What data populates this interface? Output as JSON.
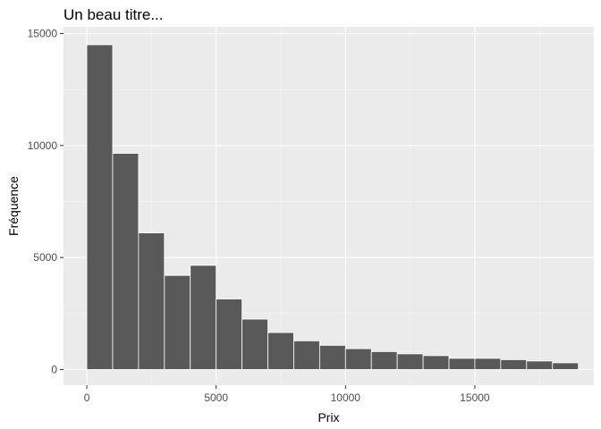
{
  "chart_data": {
    "type": "bar",
    "title": "Un beau titre...",
    "xlabel": "Prix",
    "ylabel": "Fréquence",
    "xlim": [
      -900,
      19600
    ],
    "ylim": [
      -700,
      15300
    ],
    "x_ticks": [
      0,
      5000,
      10000,
      15000
    ],
    "y_ticks": [
      0,
      5000,
      10000,
      15000
    ],
    "bin_width": 1000,
    "bins": [
      {
        "start": 0,
        "end": 1000,
        "value": 14500
      },
      {
        "start": 1000,
        "end": 2000,
        "value": 9650
      },
      {
        "start": 2000,
        "end": 3000,
        "value": 6100
      },
      {
        "start": 3000,
        "end": 4000,
        "value": 4200
      },
      {
        "start": 4000,
        "end": 5000,
        "value": 4650
      },
      {
        "start": 5000,
        "end": 6000,
        "value": 3150
      },
      {
        "start": 6000,
        "end": 7000,
        "value": 2250
      },
      {
        "start": 7000,
        "end": 8000,
        "value": 1650
      },
      {
        "start": 8000,
        "end": 9000,
        "value": 1280
      },
      {
        "start": 9000,
        "end": 10000,
        "value": 1080
      },
      {
        "start": 10000,
        "end": 11000,
        "value": 930
      },
      {
        "start": 11000,
        "end": 12000,
        "value": 800
      },
      {
        "start": 12000,
        "end": 13000,
        "value": 700
      },
      {
        "start": 13000,
        "end": 14000,
        "value": 620
      },
      {
        "start": 14000,
        "end": 15000,
        "value": 500
      },
      {
        "start": 15000,
        "end": 16000,
        "value": 500
      },
      {
        "start": 16000,
        "end": 17000,
        "value": 440
      },
      {
        "start": 17000,
        "end": 18000,
        "value": 380
      },
      {
        "start": 18000,
        "end": 19000,
        "value": 300
      }
    ],
    "grid": true,
    "colors": {
      "panel": "#ebebeb",
      "grid_major": "#ffffff",
      "grid_minor": "#f5f5f5",
      "bar_fill": "#595959",
      "bar_stroke": "#ffffff",
      "tick": "#333333"
    }
  }
}
